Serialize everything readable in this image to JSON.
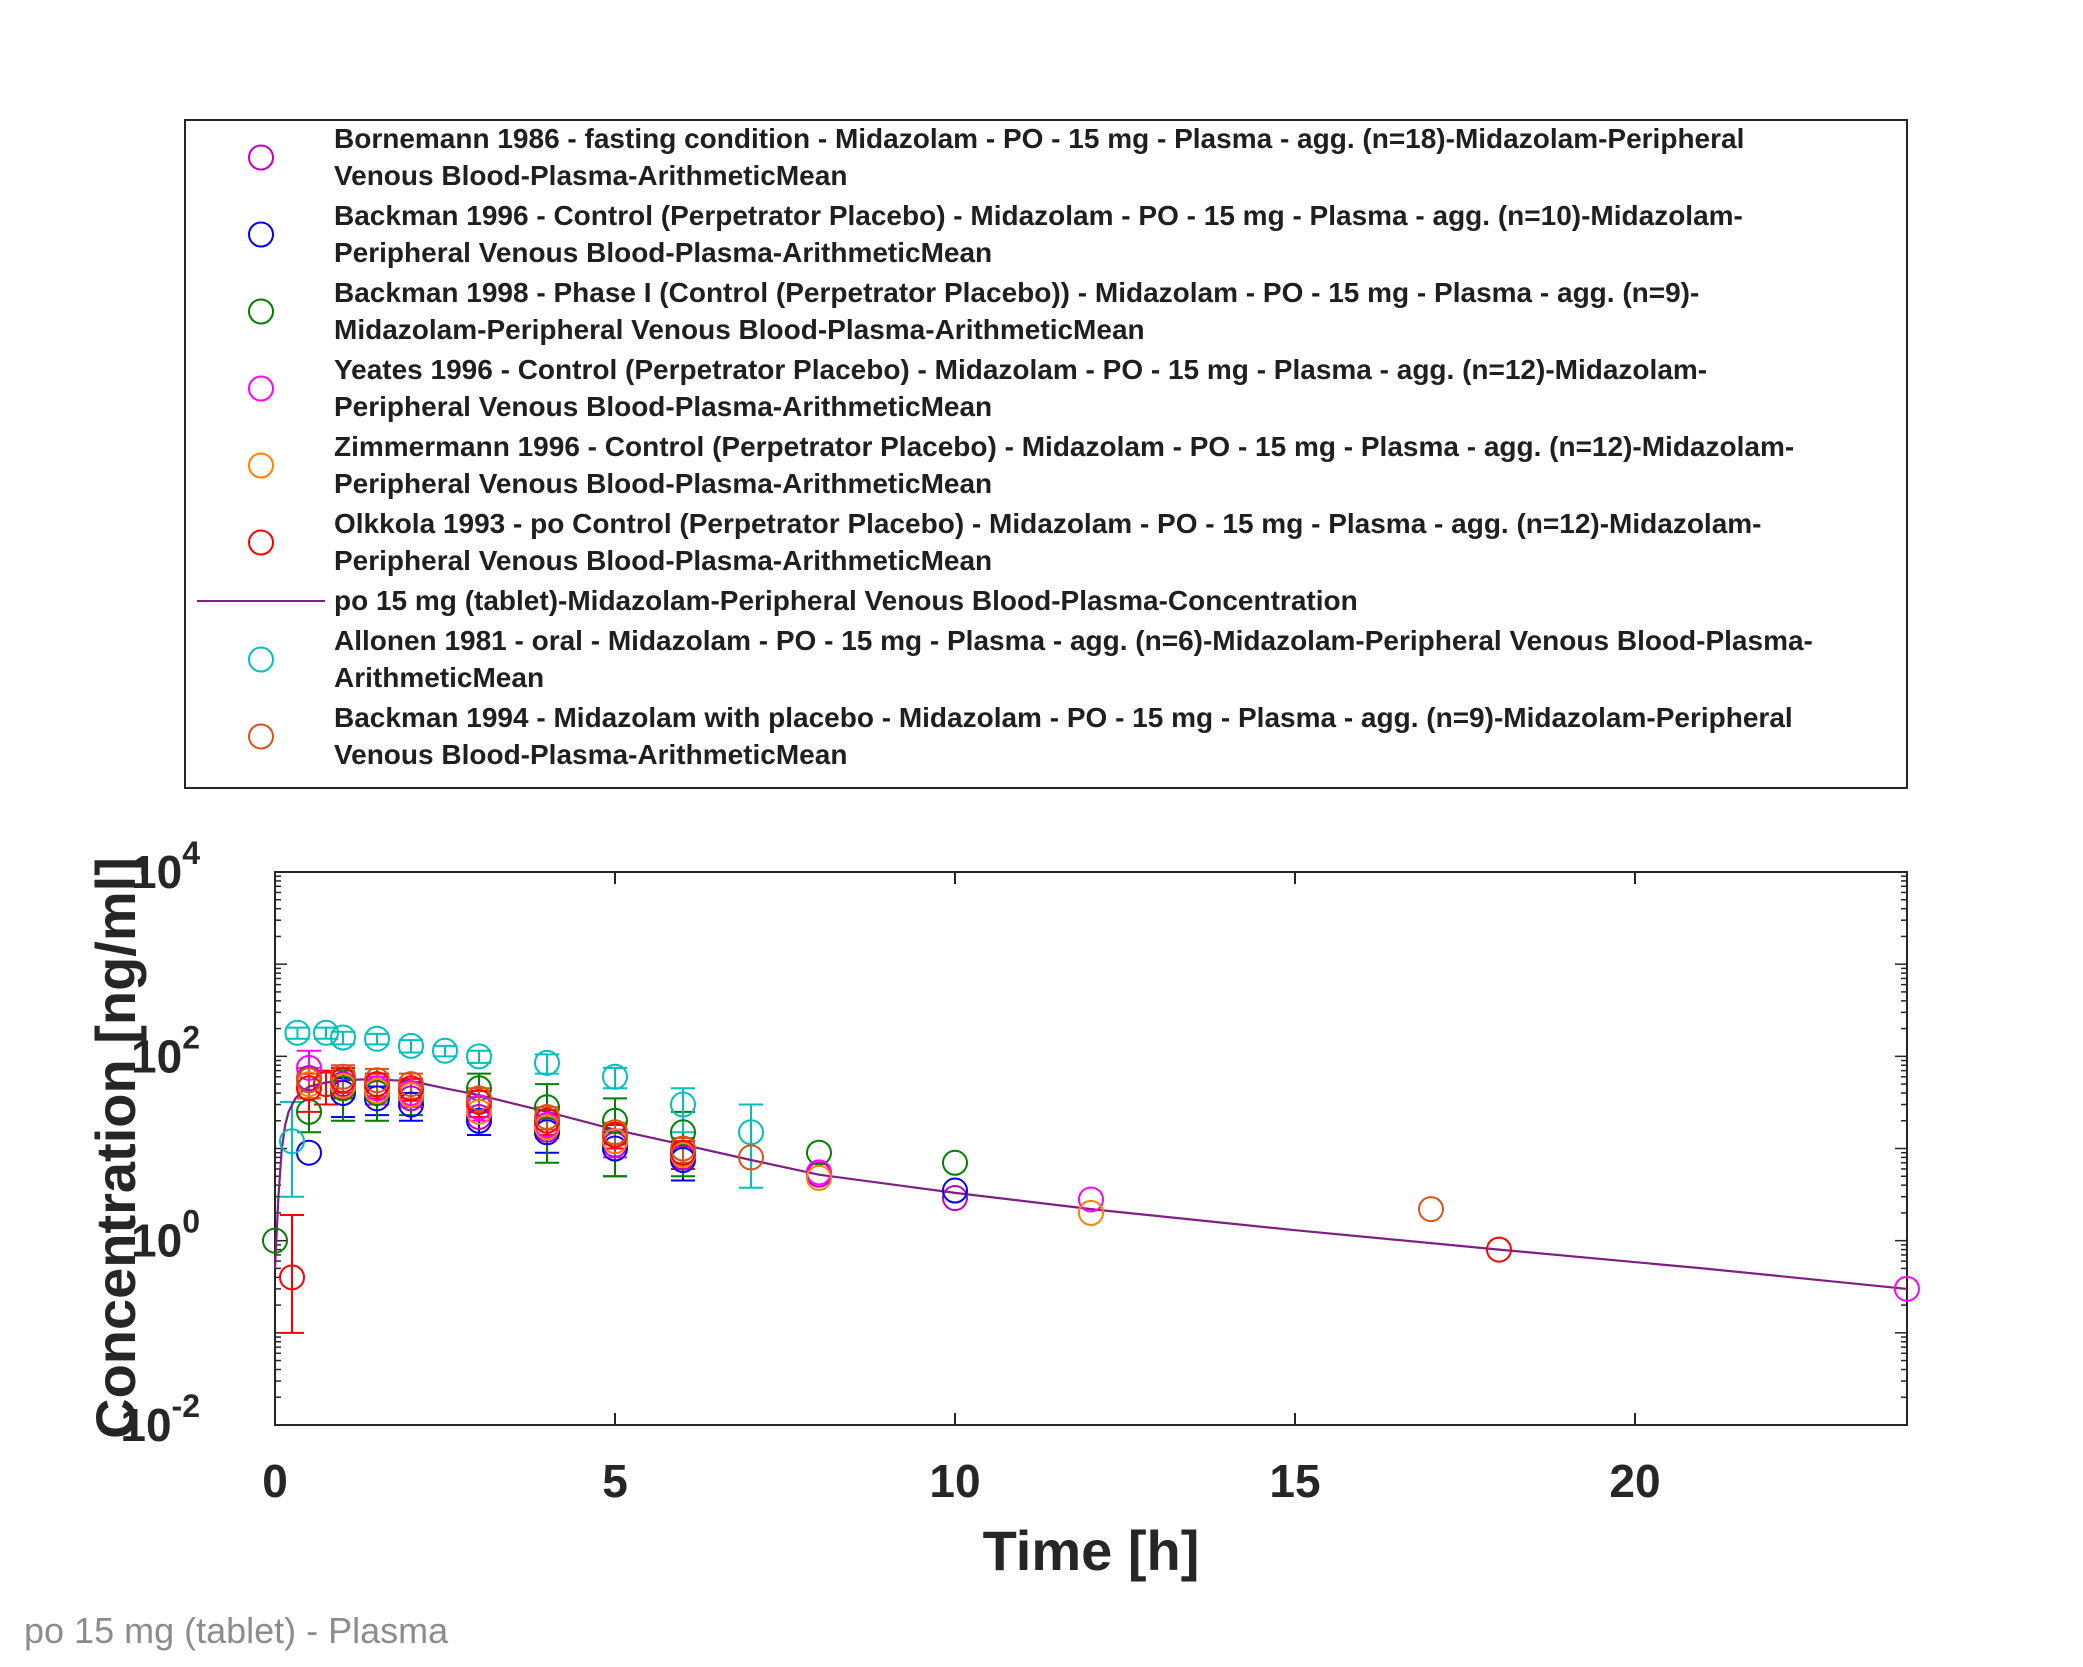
{
  "caption": "po 15 mg (tablet) - Plasma",
  "chart_data": {
    "type": "scatter",
    "title": "",
    "xlabel": "Time [h]",
    "ylabel": "Concentration [ng/ml]",
    "xlim": [
      0,
      24
    ],
    "ylim": [
      0.01,
      10000
    ],
    "yscale": "log",
    "x_ticks": [
      "0",
      "5",
      "10",
      "15",
      "20"
    ],
    "y_ticks": [
      {
        "base": "10",
        "exp": "-2"
      },
      {
        "base": "10",
        "exp": "0"
      },
      {
        "base": "10",
        "exp": "2"
      },
      {
        "base": "10",
        "exp": "4"
      }
    ],
    "grid": false,
    "legend_position": "top",
    "series": [
      {
        "name": "Bornemann 1986 - fasting condition - Midazolam - PO - 15 mg - Plasma - agg. (n=18)-Midazolam-Peripheral Venous Blood-Plasma-ArithmeticMean",
        "legend_lines": [
          "Bornemann 1986 - fasting condition - Midazolam - PO - 15 mg - Plasma - agg. (n=18)-Midazolam-Peripheral",
          "Venous Blood-Plasma-ArithmeticMean"
        ],
        "color": "#bf00bf",
        "marker": "circle",
        "x": [
          0.5,
          1,
          1.5,
          2,
          3,
          4,
          5,
          6,
          8,
          10
        ],
        "y": [
          58,
          50,
          40,
          35,
          22,
          16,
          11,
          8,
          5.2,
          2.9
        ],
        "err": []
      },
      {
        "name": "Backman 1996 - Control (Perpetrator Placebo) - Midazolam - PO - 15 mg - Plasma - agg. (n=10)-Midazolam-Peripheral Venous Blood-Plasma-ArithmeticMean",
        "legend_lines": [
          "Backman 1996 - Control (Perpetrator Placebo) - Midazolam - PO - 15 mg - Plasma - agg. (n=10)-Midazolam-",
          "Peripheral Venous Blood-Plasma-ArithmeticMean"
        ],
        "color": "#0000ff",
        "marker": "circle",
        "x": [
          0.5,
          1,
          1.5,
          2,
          3,
          4,
          5,
          6,
          10
        ],
        "y": [
          9,
          40,
          35,
          30,
          20,
          15,
          10,
          7.5,
          3.5
        ],
        "err": [
          0,
          18,
          12,
          10,
          6,
          6,
          5,
          3,
          0
        ]
      },
      {
        "name": "Backman 1998 - Phase I (Control (Perpetrator Placebo)) - Midazolam - PO - 15 mg - Plasma - agg. (n=9)-Midazolam-Peripheral Venous Blood-Plasma-ArithmeticMean",
        "legend_lines": [
          "Backman 1998 - Phase I (Control (Perpetrator Placebo)) - Midazolam - PO - 15 mg - Plasma - agg. (n=9)-",
          "Midazolam-Peripheral Venous Blood-Plasma-ArithmeticMean"
        ],
        "color": "#008000",
        "marker": "circle",
        "x": [
          0,
          0.5,
          1,
          1.5,
          2,
          3,
          4,
          5,
          6,
          8,
          10
        ],
        "y": [
          1,
          25,
          45,
          40,
          38,
          45,
          28,
          20,
          15,
          9,
          7
        ],
        "err": [
          0,
          10,
          25,
          20,
          15,
          20,
          22,
          15,
          10,
          0,
          0
        ]
      },
      {
        "name": "Yeates 1996 - Control (Perpetrator Placebo) - Midazolam - PO - 15 mg - Plasma - agg. (n=12)-Midazolam-Peripheral Venous Blood-Plasma-ArithmeticMean",
        "legend_lines": [
          "Yeates 1996 - Control (Perpetrator Placebo) - Midazolam - PO - 15 mg - Plasma - agg. (n=12)-Midazolam-",
          "Peripheral Venous Blood-Plasma-ArithmeticMean"
        ],
        "color": "#ff00ff",
        "marker": "circle",
        "x": [
          0.5,
          1,
          1.5,
          2,
          3,
          4,
          5,
          6,
          8,
          12,
          24
        ],
        "y": [
          75,
          55,
          45,
          40,
          28,
          18,
          12,
          9,
          5.5,
          2.8,
          0.3
        ],
        "err": [
          40,
          20,
          15,
          12,
          8,
          5,
          4,
          3,
          0,
          0,
          0
        ]
      },
      {
        "name": "Zimmermann 1996 - Control (Perpetrator Placebo) - Midazolam - PO - 15 mg - Plasma - agg. (n=12)-Midazolam-Peripheral Venous Blood-Plasma-ArithmeticMean",
        "legend_lines": [
          "Zimmermann 1996 - Control (Perpetrator Placebo) - Midazolam - PO - 15 mg - Plasma - agg. (n=12)-Midazolam-",
          "Peripheral Venous Blood-Plasma-ArithmeticMean"
        ],
        "color": "#ff8000",
        "marker": "circle",
        "x": [
          0.5,
          1,
          1.5,
          2,
          3,
          4,
          5,
          6,
          8,
          12
        ],
        "y": [
          50,
          48,
          42,
          38,
          25,
          17,
          12,
          8.5,
          4.8,
          2
        ],
        "err": []
      },
      {
        "name": "Olkkola 1993 - po Control (Perpetrator Placebo) - Midazolam - PO - 15 mg - Plasma - agg. (n=12)-Midazolam-Peripheral Venous Blood-Plasma-ArithmeticMean",
        "legend_lines": [
          "Olkkola 1993 - po Control (Perpetrator Placebo) - Midazolam - PO - 15 mg - Plasma - agg. (n=12)-Midazolam-",
          "Peripheral Venous Blood-Plasma-ArithmeticMean"
        ],
        "color": "#ff0000",
        "marker": "circle",
        "x": [
          0.25,
          0.5,
          0.75,
          1,
          1.5,
          2,
          3,
          4,
          5,
          6,
          18
        ],
        "y": [
          0.4,
          45,
          50,
          55,
          50,
          45,
          32,
          20,
          14,
          9,
          0.8
        ],
        "err": [
          1.5,
          20,
          20,
          20,
          15,
          12,
          10,
          6,
          4,
          3,
          0
        ]
      },
      {
        "name": "po 15 mg (tablet)-Midazolam-Peripheral Venous Blood-Plasma-Concentration",
        "legend_lines": [
          "po 15 mg (tablet)-Midazolam-Peripheral Venous Blood-Plasma-Concentration"
        ],
        "color": "#7e1f86",
        "marker": "line",
        "x": [
          0,
          0.05,
          0.1,
          0.15,
          0.2,
          0.3,
          0.4,
          0.5,
          0.75,
          1,
          1.25,
          1.5,
          1.75,
          2,
          2.5,
          3,
          4,
          5,
          6,
          7,
          8,
          10,
          12,
          15,
          18,
          21,
          24
        ],
        "y": [
          0.5,
          3,
          10,
          18,
          25,
          35,
          42,
          47,
          52,
          55,
          56,
          56,
          55,
          54,
          45,
          38,
          25,
          16,
          11,
          7.5,
          5.2,
          3.3,
          2.2,
          1.3,
          0.8,
          0.5,
          0.3
        ],
        "err": []
      },
      {
        "name": "Allonen 1981 - oral - Midazolam - PO - 15 mg - Plasma - agg. (n=6)-Midazolam-Peripheral Venous Blood-Plasma-ArithmeticMean",
        "legend_lines": [
          "Allonen 1981 - oral - Midazolam - PO - 15 mg - Plasma - agg. (n=6)-Midazolam-Peripheral Venous Blood-Plasma-",
          "ArithmeticMean"
        ],
        "color": "#00bfbf",
        "marker": "circle",
        "x": [
          0.25,
          0.33,
          0.75,
          1,
          1.5,
          2,
          2.5,
          3,
          4,
          5,
          6,
          7
        ],
        "y": [
          12,
          180,
          180,
          160,
          155,
          130,
          115,
          100,
          85,
          60,
          30,
          15
        ],
        "err": [
          20,
          25,
          25,
          25,
          20,
          20,
          15,
          15,
          20,
          15,
          15,
          15
        ]
      },
      {
        "name": "Backman 1994 - Midazolam with placebo - Midazolam - PO - 15 mg - Plasma - agg. (n=9)-Midazolam-Peripheral Venous Blood-Plasma-ArithmeticMean",
        "legend_lines": [
          "Backman 1994 - Midazolam with placebo - Midazolam - PO - 15 mg - Plasma - agg. (n=9)-Midazolam-Peripheral",
          "Venous Blood-Plasma-ArithmeticMean"
        ],
        "color": "#d95319",
        "marker": "circle",
        "x": [
          0.5,
          1,
          1.5,
          2,
          3,
          4,
          5,
          6,
          7,
          17
        ],
        "y": [
          55,
          60,
          55,
          50,
          35,
          22,
          15,
          10,
          8,
          2.2
        ],
        "err": [
          20,
          20,
          18,
          15,
          10,
          6,
          4,
          3,
          0,
          0
        ]
      }
    ]
  }
}
